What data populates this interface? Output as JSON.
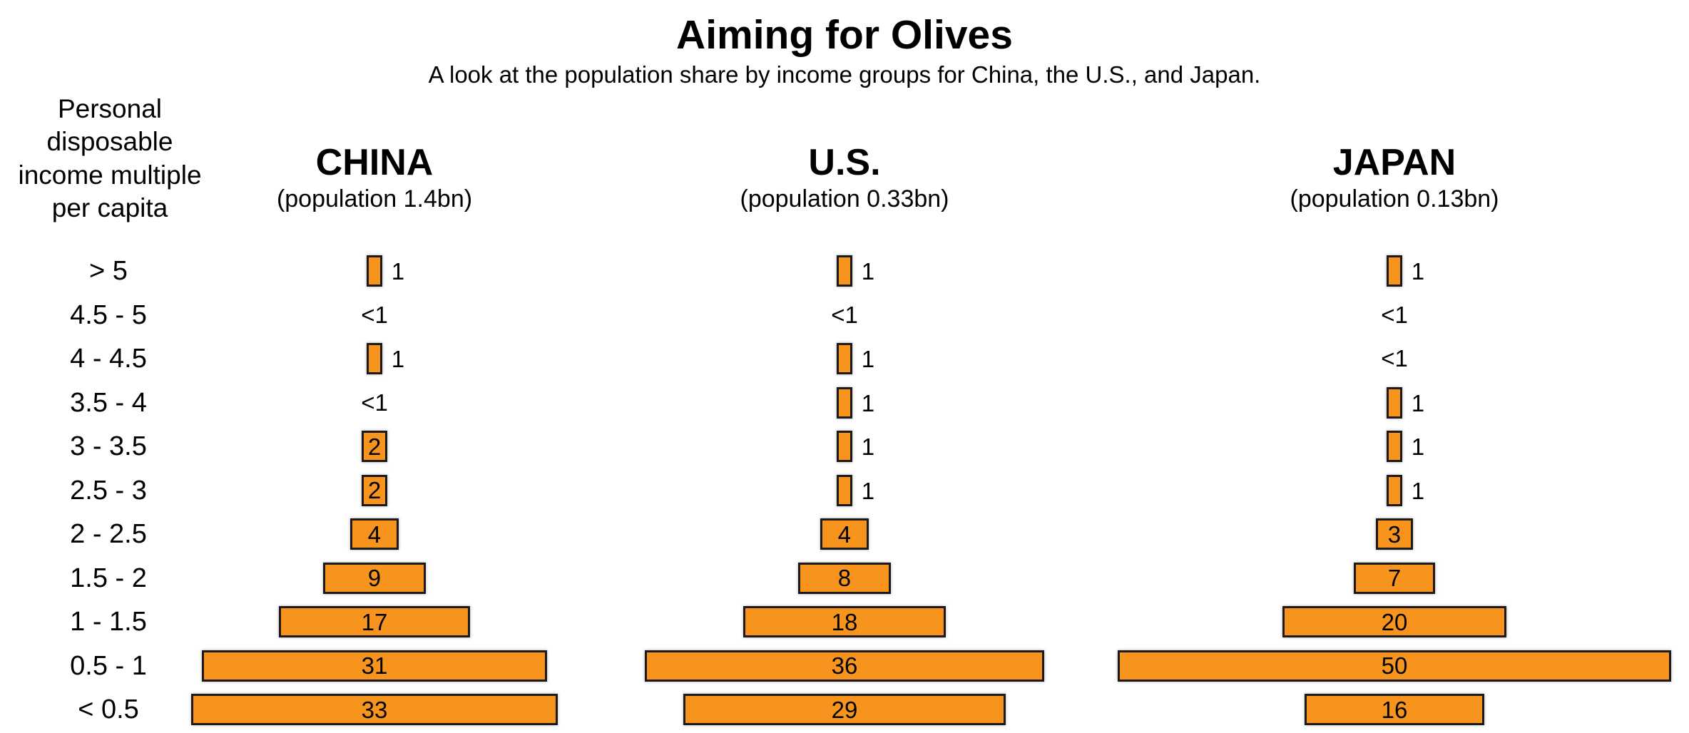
{
  "title": "Aiming for Olives",
  "subtitle": "A look at the population share by income groups for China, the U.S., and Japan.",
  "y_axis_label_lines": [
    "Personal",
    "disposable",
    "income multiple",
    "per capita"
  ],
  "columns": [
    {
      "name": "CHINA",
      "population": "(population 1.4bn)"
    },
    {
      "name": "U.S.",
      "population": "(population 0.33bn)"
    },
    {
      "name": "JAPAN",
      "population": "(population 0.13bn)"
    }
  ],
  "chart_data": {
    "type": "bar",
    "orientation": "horizontal-centered-pyramid",
    "value_unit": "percent of population",
    "categories": [
      "> 5",
      "4.5 - 5",
      "4 - 4.5",
      "3.5 - 4",
      "3 - 3.5",
      "2.5 - 3",
      "2 - 2.5",
      "1.5 - 2",
      "1 - 1.5",
      "0.5 - 1",
      "< 0.5"
    ],
    "series": [
      {
        "name": "CHINA",
        "key": "china",
        "values": [
          "1",
          "<1",
          "1",
          "<1",
          "2",
          "2",
          "4",
          "9",
          "17",
          "31",
          "33"
        ]
      },
      {
        "name": "U.S.",
        "key": "us",
        "values": [
          "1",
          "<1",
          "1",
          "1",
          "1",
          "1",
          "4",
          "8",
          "18",
          "36",
          "29"
        ]
      },
      {
        "name": "JAPAN",
        "key": "japan",
        "values": [
          "1",
          "<1",
          "<1",
          "1",
          "1",
          "1",
          "3",
          "7",
          "20",
          "50",
          "16"
        ]
      }
    ],
    "label_rules": "values >= 2 labeled inside bar; value 1 labeled right of bar; <1 shown as text only, no bar",
    "colors": {
      "bar_fill": "#F7941E",
      "bar_border": "#1F1A17",
      "text": "#000000",
      "background": "#FFFFFF"
    },
    "legend": "none",
    "gridlines": false
  }
}
